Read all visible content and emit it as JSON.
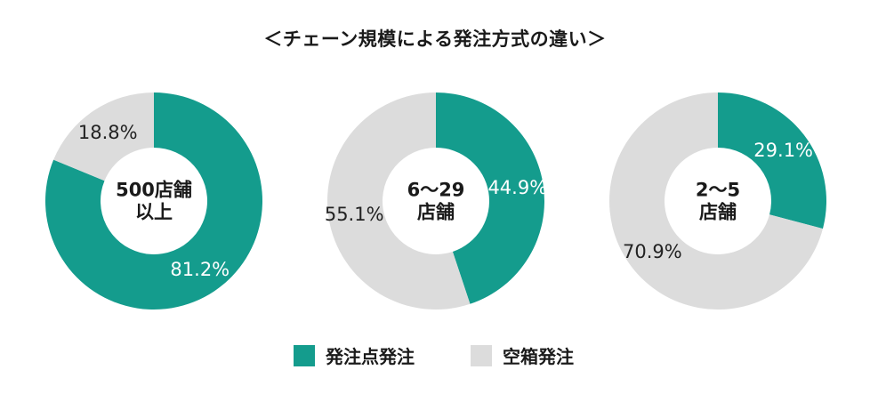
{
  "title": "＜チェーン規模による発注方式の違い＞",
  "colors": {
    "order_point": "#149c8d",
    "empty_box": "#dcdcdc"
  },
  "legend": [
    {
      "label": "発注点発注",
      "color": "#149c8d"
    },
    {
      "label": "空箱発注",
      "color": "#dcdcdc"
    }
  ],
  "chart_data": [
    {
      "type": "pie",
      "variant": "donut",
      "center_label": [
        "500店舗",
        "以上"
      ],
      "slices": [
        {
          "name": "発注点発注",
          "value": 81.2,
          "label": "81.2%",
          "color": "#149c8d"
        },
        {
          "name": "空箱発注",
          "value": 18.8,
          "label": "18.8%",
          "color": "#dcdcdc"
        }
      ]
    },
    {
      "type": "pie",
      "variant": "donut",
      "center_label": [
        "6～29",
        "店舗"
      ],
      "slices": [
        {
          "name": "発注点発注",
          "value": 44.9,
          "label": "44.9%",
          "color": "#149c8d"
        },
        {
          "name": "空箱発注",
          "value": 55.1,
          "label": "55.1%",
          "color": "#dcdcdc"
        }
      ]
    },
    {
      "type": "pie",
      "variant": "donut",
      "center_label": [
        "2～5",
        "店舗"
      ],
      "slices": [
        {
          "name": "発注点発注",
          "value": 29.1,
          "label": "29.1%",
          "color": "#149c8d"
        },
        {
          "name": "空箱発注",
          "value": 70.9,
          "label": "70.9%",
          "color": "#dcdcdc"
        }
      ]
    }
  ]
}
